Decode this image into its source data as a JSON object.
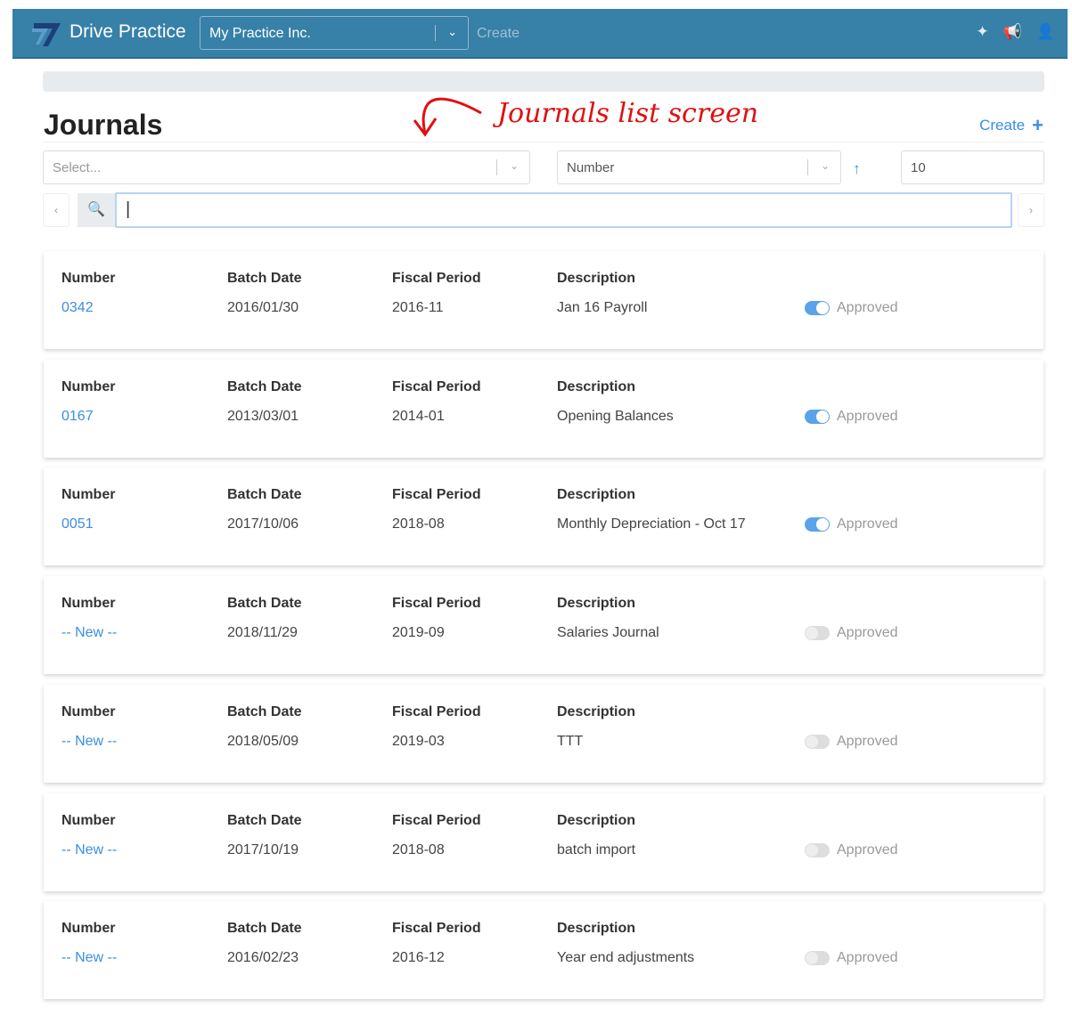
{
  "header": {
    "brand": "Drive Practice",
    "org": "My Practice Inc.",
    "create": "Create",
    "icons": [
      "magic-wand-icon",
      "megaphone-icon",
      "user-icon"
    ],
    "color": "#3780a8"
  },
  "page": {
    "title": "Journals",
    "annotation": "Journals list screen",
    "create": "Create",
    "create_icon": "+"
  },
  "filters": {
    "select_placeholder": "Select...",
    "sort_field": "Number",
    "sort_icon": "↑",
    "page_size": "10",
    "search_value": ""
  },
  "columns": {
    "number": "Number",
    "batch_date": "Batch Date",
    "fiscal_period": "Fiscal Period",
    "description": "Description",
    "approved": "Approved"
  },
  "journals": [
    {
      "number": "0342",
      "batch_date": "2016/01/30",
      "fiscal_period": "2016-11",
      "description": "Jan 16 Payroll",
      "approved": true
    },
    {
      "number": "0167",
      "batch_date": "2013/03/01",
      "fiscal_period": "2014-01",
      "description": "Opening Balances",
      "approved": true
    },
    {
      "number": "0051",
      "batch_date": "2017/10/06",
      "fiscal_period": "2018-08",
      "description": "Monthly Depreciation - Oct 17",
      "approved": true
    },
    {
      "number": "-- New --",
      "batch_date": "2018/11/29",
      "fiscal_period": "2019-09",
      "description": "Salaries Journal",
      "approved": false
    },
    {
      "number": "-- New --",
      "batch_date": "2018/05/09",
      "fiscal_period": "2019-03",
      "description": "TTT",
      "approved": false
    },
    {
      "number": "-- New --",
      "batch_date": "2017/10/19",
      "fiscal_period": "2018-08",
      "description": "batch import",
      "approved": false
    },
    {
      "number": "-- New --",
      "batch_date": "2016/02/23",
      "fiscal_period": "2016-12",
      "description": "Year end adjustments",
      "approved": false
    }
  ]
}
